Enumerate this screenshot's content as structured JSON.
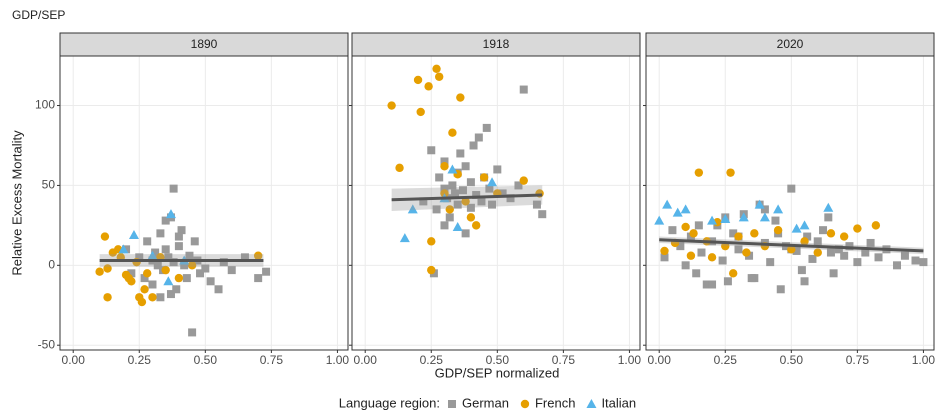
{
  "title": "GDP/SEP",
  "ylabel": "Relative Excess Mortality",
  "xlabel": "GDP/SEP normalized",
  "legend_title": "Language region:",
  "chart_data": [
    {
      "type": "scatter",
      "title": "1890",
      "xlim": [
        -0.05,
        1.04
      ],
      "ylim": [
        -53,
        131
      ],
      "xticks": [
        {
          "value": 0,
          "label": "0.00"
        },
        {
          "value": 0.25,
          "label": "0.25"
        },
        {
          "value": 0.5,
          "label": "0.50"
        },
        {
          "value": 0.75,
          "label": "0.75"
        },
        {
          "value": 1,
          "label": "1.00"
        }
      ],
      "yticks": [
        -50,
        0,
        50,
        100
      ],
      "grid": true,
      "series": [
        {
          "name": "German",
          "color": "#999999",
          "shape": "square",
          "x": [
            0.2,
            0.22,
            0.25,
            0.27,
            0.28,
            0.3,
            0.3,
            0.31,
            0.32,
            0.33,
            0.34,
            0.35,
            0.35,
            0.36,
            0.37,
            0.38,
            0.38,
            0.39,
            0.4,
            0.41,
            0.42,
            0.43,
            0.44,
            0.45,
            0.46,
            0.47,
            0.48,
            0.5,
            0.52,
            0.55,
            0.57,
            0.6,
            0.65,
            0.7,
            0.73,
            0.37,
            0.33,
            0.4
          ],
          "values": [
            10,
            -5,
            5,
            -8,
            15,
            3,
            -12,
            8,
            0,
            20,
            -3,
            28,
            10,
            5,
            -18,
            48,
            2,
            -15,
            12,
            22,
            0,
            -8,
            6,
            -42,
            15,
            3,
            -5,
            -2,
            -10,
            -15,
            2,
            -3,
            5,
            -8,
            -4,
            30,
            -20,
            18
          ]
        },
        {
          "name": "French",
          "color": "#E69F00",
          "shape": "circle",
          "x": [
            0.1,
            0.12,
            0.13,
            0.13,
            0.15,
            0.17,
            0.18,
            0.2,
            0.21,
            0.22,
            0.24,
            0.25,
            0.26,
            0.27,
            0.28,
            0.3,
            0.33,
            0.35,
            0.4,
            0.45,
            0.7
          ],
          "values": [
            -4,
            18,
            -20,
            -2,
            8,
            10,
            5,
            -6,
            -8,
            -10,
            2,
            -20,
            -23,
            -15,
            -5,
            -20,
            5,
            -3,
            -8,
            0,
            6
          ]
        },
        {
          "name": "Italian",
          "color": "#56B4E9",
          "shape": "triangle",
          "x": [
            0.19,
            0.23,
            0.3,
            0.37,
            0.36,
            0.42
          ],
          "values": [
            10,
            19,
            6,
            32,
            -10,
            3
          ]
        }
      ],
      "fit": {
        "color": "#555555",
        "x": [
          0.1,
          0.72
        ],
        "values": [
          3,
          3
        ],
        "lower": [
          -1,
          -1
        ],
        "upper": [
          7,
          7
        ]
      }
    },
    {
      "type": "scatter",
      "title": "1918",
      "xlim": [
        -0.05,
        1.04
      ],
      "ylim": [
        -53,
        131
      ],
      "xticks": [
        {
          "value": 0,
          "label": "0.00"
        },
        {
          "value": 0.25,
          "label": "0.25"
        },
        {
          "value": 0.5,
          "label": "0.50"
        },
        {
          "value": 0.75,
          "label": "0.75"
        },
        {
          "value": 1,
          "label": "1.00"
        }
      ],
      "yticks": [
        -50,
        0,
        50,
        100
      ],
      "grid": true,
      "series": [
        {
          "name": "German",
          "color": "#999999",
          "shape": "square",
          "x": [
            0.22,
            0.25,
            0.27,
            0.28,
            0.3,
            0.3,
            0.31,
            0.32,
            0.33,
            0.34,
            0.35,
            0.35,
            0.36,
            0.37,
            0.38,
            0.4,
            0.4,
            0.41,
            0.42,
            0.43,
            0.44,
            0.45,
            0.46,
            0.47,
            0.48,
            0.5,
            0.52,
            0.55,
            0.58,
            0.6,
            0.65,
            0.67,
            0.3,
            0.38,
            0.26
          ],
          "values": [
            40,
            72,
            35,
            55,
            48,
            65,
            42,
            30,
            50,
            45,
            58,
            38,
            70,
            47,
            62,
            36,
            52,
            75,
            44,
            80,
            40,
            55,
            86,
            48,
            38,
            60,
            45,
            42,
            50,
            110,
            38,
            32,
            25,
            20,
            -5
          ]
        },
        {
          "name": "French",
          "color": "#E69F00",
          "shape": "circle",
          "x": [
            0.1,
            0.13,
            0.2,
            0.21,
            0.24,
            0.25,
            0.27,
            0.28,
            0.3,
            0.32,
            0.33,
            0.35,
            0.36,
            0.38,
            0.4,
            0.42,
            0.45,
            0.5,
            0.6,
            0.66,
            0.25,
            0.3
          ],
          "values": [
            100,
            61,
            116,
            96,
            112,
            -3,
            123,
            118,
            45,
            35,
            83,
            57,
            105,
            40,
            30,
            25,
            55,
            45,
            53,
            45,
            15,
            62
          ]
        },
        {
          "name": "Italian",
          "color": "#56B4E9",
          "shape": "triangle",
          "x": [
            0.15,
            0.18,
            0.33,
            0.35,
            0.48,
            0.3
          ],
          "values": [
            17,
            35,
            60,
            24,
            52,
            42
          ]
        }
      ],
      "fit": {
        "color": "#555555",
        "x": [
          0.1,
          0.67
        ],
        "values": [
          41,
          44
        ],
        "lower": [
          34,
          38
        ],
        "upper": [
          48,
          50
        ]
      }
    },
    {
      "type": "scatter",
      "title": "2020",
      "xlim": [
        -0.05,
        1.04
      ],
      "ylim": [
        -53,
        131
      ],
      "xticks": [
        {
          "value": 0,
          "label": "0.00"
        },
        {
          "value": 0.25,
          "label": "0.25"
        },
        {
          "value": 0.5,
          "label": "0.50"
        },
        {
          "value": 0.75,
          "label": "0.75"
        },
        {
          "value": 1,
          "label": "1.00"
        }
      ],
      "yticks": [
        -50,
        0,
        50,
        100
      ],
      "grid": true,
      "series": [
        {
          "name": "German",
          "color": "#999999",
          "shape": "square",
          "x": [
            0.02,
            0.05,
            0.08,
            0.1,
            0.12,
            0.14,
            0.16,
            0.18,
            0.2,
            0.22,
            0.24,
            0.26,
            0.28,
            0.3,
            0.32,
            0.34,
            0.36,
            0.38,
            0.4,
            0.42,
            0.44,
            0.46,
            0.48,
            0.5,
            0.52,
            0.54,
            0.56,
            0.58,
            0.6,
            0.62,
            0.64,
            0.66,
            0.68,
            0.7,
            0.72,
            0.75,
            0.78,
            0.8,
            0.83,
            0.86,
            0.9,
            0.93,
            0.97,
            1.0,
            0.15,
            0.25,
            0.35,
            0.45,
            0.55,
            0.65,
            0.2,
            0.3,
            0.4,
            0.5
          ],
          "values": [
            5,
            22,
            12,
            0,
            18,
            -5,
            8,
            -12,
            15,
            25,
            3,
            -10,
            20,
            10,
            32,
            6,
            -8,
            38,
            14,
            2,
            28,
            -15,
            12,
            48,
            9,
            -3,
            18,
            4,
            15,
            22,
            30,
            -5,
            10,
            6,
            12,
            2,
            8,
            14,
            5,
            10,
            0,
            6,
            3,
            2,
            25,
            30,
            -8,
            20,
            -10,
            8,
            -12,
            18,
            35,
            10
          ]
        },
        {
          "name": "French",
          "color": "#E69F00",
          "shape": "circle",
          "x": [
            0.02,
            0.06,
            0.1,
            0.13,
            0.15,
            0.18,
            0.2,
            0.22,
            0.25,
            0.27,
            0.3,
            0.33,
            0.36,
            0.4,
            0.45,
            0.5,
            0.55,
            0.6,
            0.65,
            0.7,
            0.75,
            0.82,
            0.12,
            0.28
          ],
          "values": [
            9,
            14,
            24,
            20,
            58,
            15,
            5,
            27,
            12,
            58,
            18,
            8,
            20,
            12,
            22,
            10,
            15,
            8,
            20,
            18,
            23,
            25,
            6,
            -5
          ]
        },
        {
          "name": "Italian",
          "color": "#56B4E9",
          "shape": "triangle",
          "x": [
            0.0,
            0.03,
            0.07,
            0.1,
            0.2,
            0.25,
            0.32,
            0.38,
            0.4,
            0.45,
            0.52,
            0.55,
            0.64
          ],
          "values": [
            28,
            38,
            33,
            35,
            28,
            29,
            30,
            38,
            30,
            35,
            23,
            25,
            36
          ]
        }
      ],
      "fit": {
        "color": "#555555",
        "x": [
          0,
          1
        ],
        "values": [
          16,
          9
        ],
        "lower": [
          14,
          7
        ],
        "upper": [
          18,
          11
        ]
      }
    }
  ]
}
